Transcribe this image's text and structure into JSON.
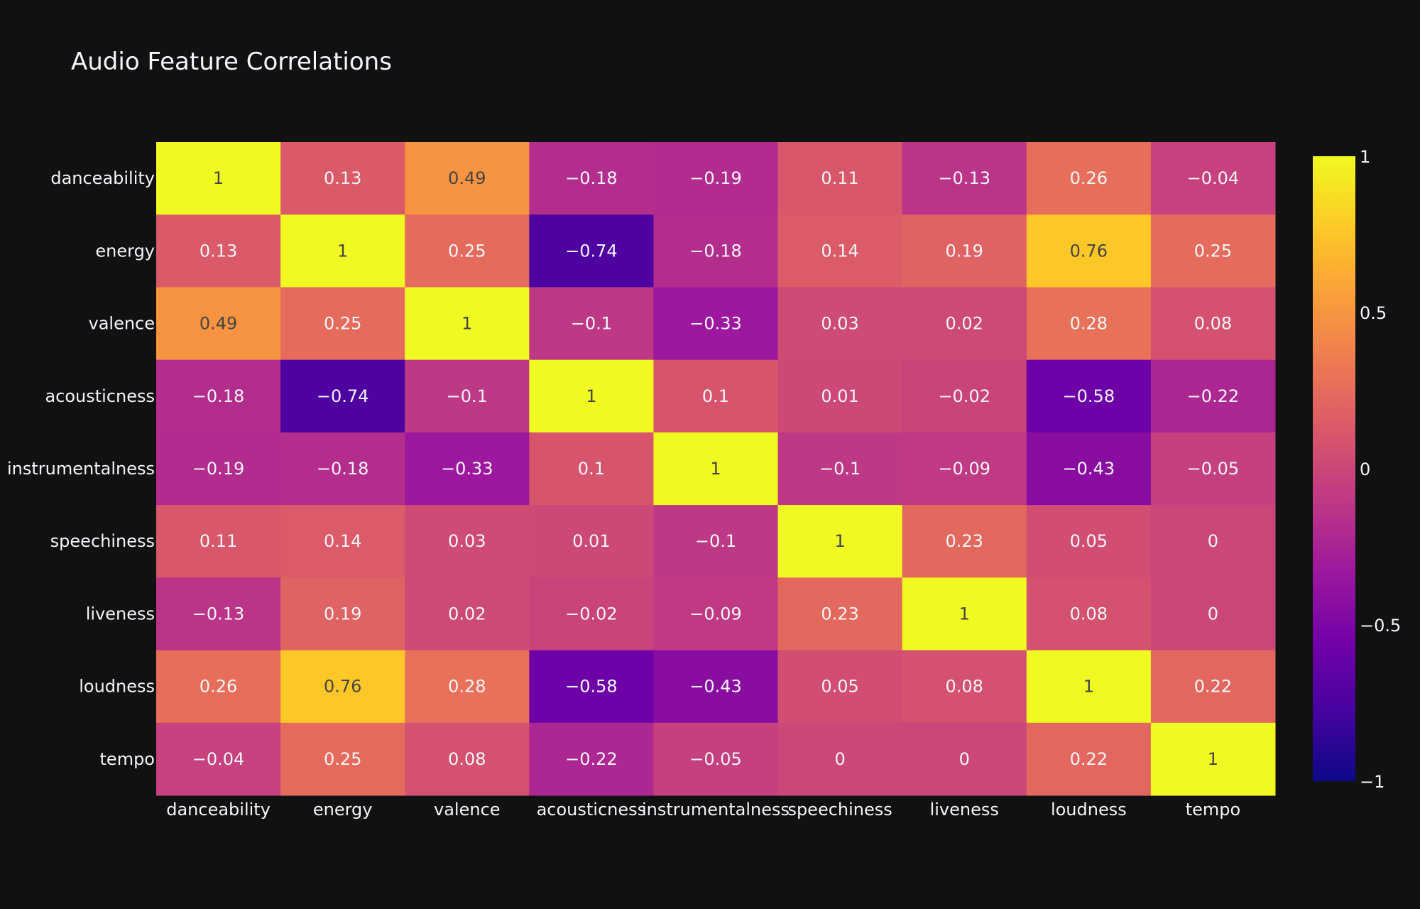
{
  "chart_data": {
    "type": "heatmap",
    "title": "Audio Feature Correlations",
    "x_categories": [
      "danceability",
      "energy",
      "valence",
      "acousticness",
      "instrumentalness",
      "speechiness",
      "liveness",
      "loudness",
      "tempo"
    ],
    "y_categories": [
      "danceability",
      "energy",
      "valence",
      "acousticness",
      "instrumentalness",
      "speechiness",
      "liveness",
      "loudness",
      "tempo"
    ],
    "values": [
      [
        1,
        0.13,
        0.49,
        -0.18,
        -0.19,
        0.11,
        -0.13,
        0.26,
        -0.04
      ],
      [
        0.13,
        1,
        0.25,
        -0.74,
        -0.18,
        0.14,
        0.19,
        0.76,
        0.25
      ],
      [
        0.49,
        0.25,
        1,
        -0.1,
        -0.33,
        0.03,
        0.02,
        0.28,
        0.08
      ],
      [
        -0.18,
        -0.74,
        -0.1,
        1,
        0.1,
        0.01,
        -0.02,
        -0.58,
        -0.22
      ],
      [
        -0.19,
        -0.18,
        -0.33,
        0.1,
        1,
        -0.1,
        -0.09,
        -0.43,
        -0.05
      ],
      [
        0.11,
        0.14,
        0.03,
        0.01,
        -0.1,
        1,
        0.23,
        0.05,
        0
      ],
      [
        -0.13,
        0.19,
        0.02,
        -0.02,
        -0.09,
        0.23,
        1,
        0.08,
        0
      ],
      [
        0.26,
        0.76,
        0.28,
        -0.58,
        -0.43,
        0.05,
        0.08,
        1,
        0.22
      ],
      [
        -0.04,
        0.25,
        0.08,
        -0.22,
        -0.05,
        0,
        0,
        0.22,
        1
      ]
    ],
    "value_labels": [
      [
        "1",
        "0.13",
        "0.49",
        "−0.18",
        "−0.19",
        "0.11",
        "−0.13",
        "0.26",
        "−0.04"
      ],
      [
        "0.13",
        "1",
        "0.25",
        "−0.74",
        "−0.18",
        "0.14",
        "0.19",
        "0.76",
        "0.25"
      ],
      [
        "0.49",
        "0.25",
        "1",
        "−0.1",
        "−0.33",
        "0.03",
        "0.02",
        "0.28",
        "0.08"
      ],
      [
        "−0.18",
        "−0.74",
        "−0.1",
        "1",
        "0.1",
        "0.01",
        "−0.02",
        "−0.58",
        "−0.22"
      ],
      [
        "−0.19",
        "−0.18",
        "−0.33",
        "0.1",
        "1",
        "−0.1",
        "−0.09",
        "−0.43",
        "−0.05"
      ],
      [
        "0.11",
        "0.14",
        "0.03",
        "0.01",
        "−0.1",
        "1",
        "0.23",
        "0.05",
        "0"
      ],
      [
        "−0.13",
        "0.19",
        "0.02",
        "−0.02",
        "−0.09",
        "0.23",
        "1",
        "0.08",
        "0"
      ],
      [
        "0.26",
        "0.76",
        "0.28",
        "−0.58",
        "−0.43",
        "0.05",
        "0.08",
        "1",
        "0.22"
      ],
      [
        "−0.04",
        "0.25",
        "0.08",
        "−0.22",
        "−0.05",
        "0",
        "0",
        "0.22",
        "1"
      ]
    ],
    "zlim": [
      -1,
      1
    ],
    "colorscale_name": "plasma",
    "colorbar": {
      "ticks": [
        1,
        0.5,
        0,
        -0.5,
        -1
      ],
      "tick_labels": [
        "1",
        "0.5",
        "0",
        "−0.5",
        "−1"
      ]
    },
    "colors": {
      "background": "#111111",
      "text": "#f2f5fa",
      "dark_text": "#444444"
    }
  }
}
